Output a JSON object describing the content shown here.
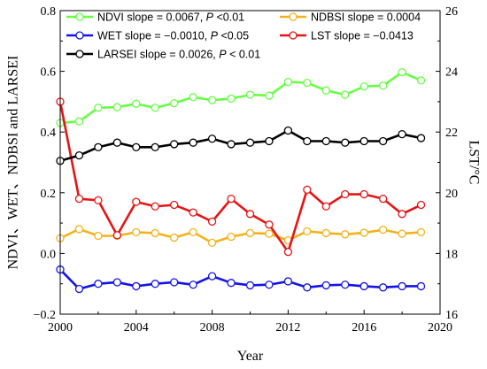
{
  "chart_data": {
    "type": "line",
    "x": [
      2000,
      2001,
      2002,
      2003,
      2004,
      2005,
      2006,
      2007,
      2008,
      2009,
      2010,
      2011,
      2012,
      2013,
      2014,
      2015,
      2016,
      2017,
      2018,
      2019
    ],
    "xlabel": "Year",
    "ylabel_left": "NDVI、WET、NDBSI and LARSEI",
    "ylabel_right": "LST/°C",
    "xlim": [
      2000,
      2020
    ],
    "ylim_left": [
      -0.2,
      0.8
    ],
    "ylim_right": [
      16,
      26
    ],
    "xticks": [
      "2000",
      "2004",
      "2008",
      "2012",
      "2016",
      "2020"
    ],
    "yticks_left": [
      "−0.2",
      "0.0",
      "0.2",
      "0.4",
      "0.6",
      "0.8"
    ],
    "yticks_right": [
      "16",
      "18",
      "20",
      "22",
      "24",
      "26"
    ],
    "series": [
      {
        "name": "NDVI slope = 0.0067, P <0.01",
        "legend_parts": [
          "NDVI slope = 0.0067, ",
          "P",
          " <0.01"
        ],
        "axis": "left",
        "color": "#66ff44",
        "values": [
          0.43,
          0.435,
          0.48,
          0.482,
          0.493,
          0.48,
          0.495,
          0.515,
          0.505,
          0.51,
          0.523,
          0.52,
          0.565,
          0.562,
          0.537,
          0.523,
          0.55,
          0.553,
          0.597,
          0.57
        ]
      },
      {
        "name": "NDBSI slope = 0.0004",
        "legend_parts": [
          "NDBSI slope = 0.0004",
          "",
          ""
        ],
        "axis": "left",
        "color": "#f2b21b",
        "values": [
          0.05,
          0.08,
          0.058,
          0.058,
          0.07,
          0.067,
          0.052,
          0.07,
          0.035,
          0.055,
          0.067,
          0.065,
          0.043,
          0.073,
          0.067,
          0.063,
          0.068,
          0.078,
          0.065,
          0.07
        ]
      },
      {
        "name": "WET slope = −0.0010, P <0.05",
        "legend_parts": [
          "WET slope = −0.0010, ",
          "P",
          " <0.05"
        ],
        "axis": "left",
        "color": "#1414e6",
        "values": [
          -0.053,
          -0.117,
          -0.1,
          -0.095,
          -0.108,
          -0.1,
          -0.095,
          -0.103,
          -0.075,
          -0.097,
          -0.105,
          -0.103,
          -0.092,
          -0.112,
          -0.105,
          -0.103,
          -0.108,
          -0.112,
          -0.108,
          -0.108
        ]
      },
      {
        "name": "LST slope = −0.0413",
        "legend_parts": [
          "LST slope = −0.0413",
          "",
          ""
        ],
        "axis": "right",
        "color": "#e61414",
        "values": [
          23.0,
          19.8,
          19.75,
          18.6,
          19.7,
          19.55,
          19.6,
          19.35,
          19.05,
          19.8,
          19.3,
          18.95,
          18.05,
          20.1,
          19.55,
          19.95,
          19.95,
          19.8,
          19.3,
          19.6
        ]
      },
      {
        "name": "LARSEI slope = 0.0026, P < 0.01",
        "legend_parts": [
          "LARSEI slope = 0.0026, ",
          "P",
          " < 0.01"
        ],
        "axis": "left",
        "color": "#000000",
        "values": [
          0.305,
          0.323,
          0.35,
          0.365,
          0.35,
          0.35,
          0.36,
          0.365,
          0.378,
          0.36,
          0.365,
          0.37,
          0.405,
          0.37,
          0.37,
          0.365,
          0.37,
          0.37,
          0.393,
          0.38
        ]
      }
    ]
  }
}
